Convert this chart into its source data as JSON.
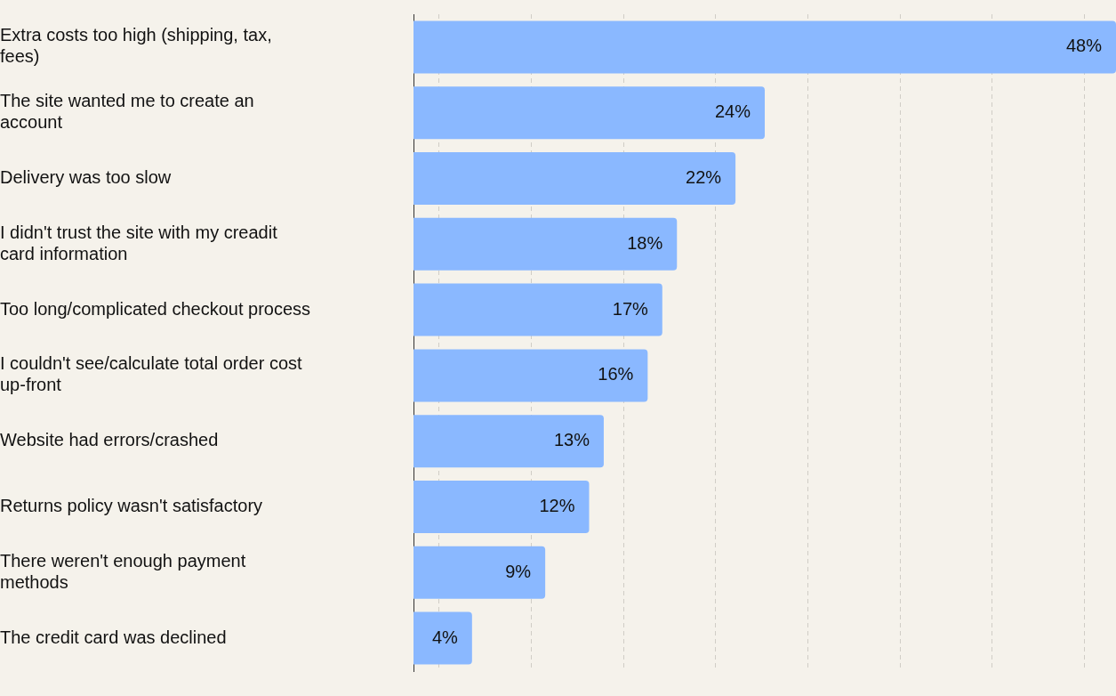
{
  "chart_data": {
    "type": "bar",
    "orientation": "horizontal",
    "categories": [
      "Extra costs too high (shipping, tax, fees)",
      "The site wanted me to create an account",
      "Delivery was too slow",
      "I didn't trust the site with my creadit card information",
      "Too long/complicated checkout process",
      "I couldn't see/calculate total order cost up-front",
      "Website had errors/crashed",
      "Returns policy wasn't satisfactory",
      "There weren't enough payment methods",
      "The credit card was declined"
    ],
    "values": [
      48,
      24,
      22,
      18,
      17,
      16,
      13,
      12,
      9,
      4
    ],
    "value_labels": [
      "48%",
      "24%",
      "22%",
      "18%",
      "17%",
      "16%",
      "13%",
      "12%",
      "9%",
      "4%"
    ],
    "color": "#8ab8ff",
    "xlim": [
      0,
      48
    ],
    "xticks": [
      {
        "value": 1.75,
        "label": null
      },
      {
        "value": 8.05,
        "label": null
      },
      {
        "value": 14.35,
        "label": null
      },
      {
        "value": 20.65,
        "label": null
      },
      {
        "value": 26.95,
        "label": null
      },
      {
        "value": 33.25,
        "label": null
      },
      {
        "value": 39.55,
        "label": null
      },
      {
        "value": 45.85,
        "label": null
      }
    ],
    "grid": "x",
    "tick_labels": "y",
    "legend": false
  }
}
